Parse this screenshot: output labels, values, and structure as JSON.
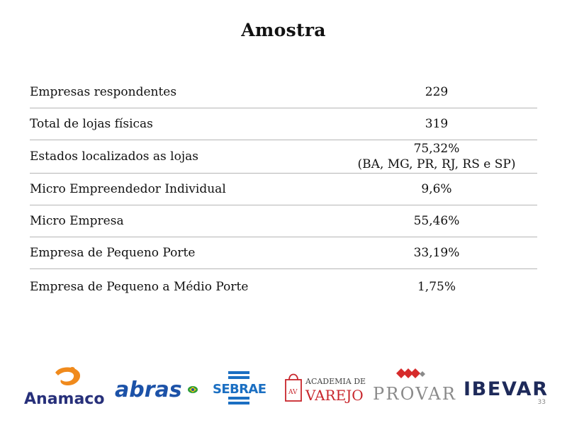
{
  "title": "Amostra",
  "rows": [
    {
      "label": "Empresas respondentes",
      "value": "229"
    },
    {
      "label": "Total de lojas físicas",
      "value": "319"
    },
    {
      "label": "Estados localizados as lojas",
      "value": "75,32%",
      "value_sub": "(BA, MG, PR, RJ, RS e SP)"
    },
    {
      "label": "Micro Empreendedor Individual",
      "value": "9,6%"
    },
    {
      "label": "Micro Empresa",
      "value": "55,46%"
    },
    {
      "label": "Empresa de Pequeno Porte",
      "value": "33,19%"
    },
    {
      "label": "Empresa de Pequeno a Médio Porte",
      "value": "1,75%"
    }
  ],
  "logos": {
    "anamaco": "Anamaco",
    "abras": "abras",
    "sebrae": "SEBRAE",
    "academia_line1": "ACADEMIA DE",
    "academia_line2": "VAREJO",
    "academia_mark": "AV",
    "provar": "PROVAR",
    "ibevar": "IBEVAR"
  },
  "page_number": "33",
  "colors": {
    "anamaco_orange": "#f08a1c",
    "anamaco_navy": "#27307a",
    "abras_blue": "#1c52a8",
    "sebrae_blue": "#1b6fc2",
    "academia_red": "#c8262c",
    "provar_red": "#d62b2b",
    "provar_gray": "#8a8a8a",
    "ibevar_navy": "#1e2a5a"
  }
}
